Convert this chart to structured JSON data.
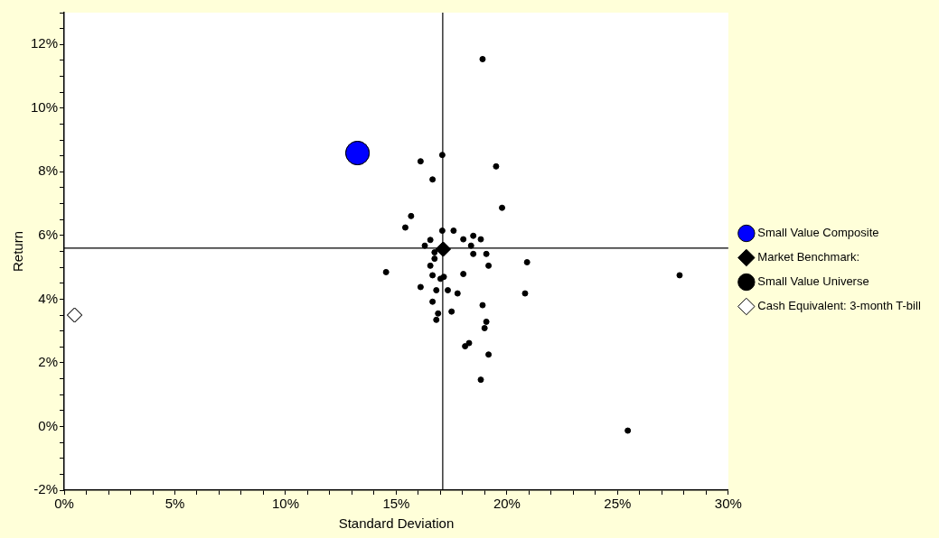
{
  "chart_data": {
    "type": "scatter",
    "xlabel": "Standard Deviation",
    "ylabel": "Return",
    "xlim": [
      0,
      30
    ],
    "ylim": [
      -2,
      13
    ],
    "xticks": [
      {
        "value": 0,
        "label": "0%"
      },
      {
        "value": 1,
        "label": null
      },
      {
        "value": 2,
        "label": null
      },
      {
        "value": 3,
        "label": null
      },
      {
        "value": 4,
        "label": null
      },
      {
        "value": 5,
        "label": "5%"
      },
      {
        "value": 6,
        "label": null
      },
      {
        "value": 7,
        "label": null
      },
      {
        "value": 8,
        "label": null
      },
      {
        "value": 9,
        "label": null
      },
      {
        "value": 10,
        "label": "10%"
      },
      {
        "value": 11,
        "label": null
      },
      {
        "value": 12,
        "label": null
      },
      {
        "value": 13,
        "label": null
      },
      {
        "value": 14,
        "label": null
      },
      {
        "value": 15,
        "label": "15%"
      },
      {
        "value": 16,
        "label": null
      },
      {
        "value": 17,
        "label": null
      },
      {
        "value": 18,
        "label": null
      },
      {
        "value": 19,
        "label": null
      },
      {
        "value": 20,
        "label": "20%"
      },
      {
        "value": 21,
        "label": null
      },
      {
        "value": 22,
        "label": null
      },
      {
        "value": 23,
        "label": null
      },
      {
        "value": 24,
        "label": null
      },
      {
        "value": 25,
        "label": "25%"
      },
      {
        "value": 26,
        "label": null
      },
      {
        "value": 27,
        "label": null
      },
      {
        "value": 28,
        "label": null
      },
      {
        "value": 29,
        "label": null
      },
      {
        "value": 30,
        "label": "30%"
      }
    ],
    "yticks": [
      {
        "value": -2,
        "label": "-2%"
      },
      {
        "value": -1.5,
        "label": null
      },
      {
        "value": -1,
        "label": null
      },
      {
        "value": -0.5,
        "label": null
      },
      {
        "value": 0,
        "label": "0%"
      },
      {
        "value": 0.5,
        "label": null
      },
      {
        "value": 1,
        "label": null
      },
      {
        "value": 1.5,
        "label": null
      },
      {
        "value": 2,
        "label": "2%"
      },
      {
        "value": 2.5,
        "label": null
      },
      {
        "value": 3,
        "label": null
      },
      {
        "value": 3.5,
        "label": null
      },
      {
        "value": 4,
        "label": "4%"
      },
      {
        "value": 4.5,
        "label": null
      },
      {
        "value": 5,
        "label": null
      },
      {
        "value": 5.5,
        "label": null
      },
      {
        "value": 6,
        "label": "6%"
      },
      {
        "value": 6.5,
        "label": null
      },
      {
        "value": 7,
        "label": null
      },
      {
        "value": 7.5,
        "label": null
      },
      {
        "value": 8,
        "label": "8%"
      },
      {
        "value": 8.5,
        "label": null
      },
      {
        "value": 9,
        "label": null
      },
      {
        "value": 9.5,
        "label": null
      },
      {
        "value": 10,
        "label": "10%"
      },
      {
        "value": 10.5,
        "label": null
      },
      {
        "value": 11,
        "label": null
      },
      {
        "value": 11.5,
        "label": null
      },
      {
        "value": 12,
        "label": "12%"
      },
      {
        "value": 12.5,
        "label": null
      },
      {
        "value": 13,
        "label": null
      }
    ],
    "grid": false,
    "legend": "right",
    "ref_lines": [
      {
        "axis": "x",
        "value": 17.1,
        "color": "#000000"
      },
      {
        "axis": "y",
        "value": 5.6,
        "color": "#000000"
      }
    ],
    "series": [
      {
        "name": "Small Value Composite",
        "color": "#0000ff",
        "marker": "circle",
        "x": [
          13.25
        ],
        "values": [
          8.59
        ]
      },
      {
        "name": "Market Benchmark:",
        "color": "#000000",
        "marker": "diamond",
        "x": [
          17.12
        ],
        "values": [
          5.57
        ]
      },
      {
        "name": "Small Value Universe",
        "color": "#000000",
        "marker": "circle",
        "x": [
          18.9,
          17.08,
          16.1,
          19.51,
          16.64,
          19.78,
          15.67,
          15.41,
          17.08,
          17.59,
          18.48,
          16.54,
          18.03,
          18.82,
          16.29,
          18.38,
          16.73,
          18.48,
          19.07,
          16.73,
          20.91,
          16.54,
          19.17,
          14.54,
          16.64,
          17.15,
          17.0,
          18.03,
          16.1,
          16.81,
          17.33,
          17.77,
          20.82,
          16.64,
          18.9,
          16.89,
          17.5,
          16.81,
          19.07,
          18.99,
          18.29,
          18.11,
          19.17,
          18.82,
          27.8,
          25.46
        ],
        "values": [
          11.54,
          8.53,
          8.33,
          8.17,
          7.76,
          6.87,
          6.61,
          6.25,
          6.15,
          6.15,
          5.99,
          5.86,
          5.88,
          5.88,
          5.68,
          5.68,
          5.47,
          5.42,
          5.42,
          5.27,
          5.16,
          5.05,
          5.05,
          4.85,
          4.75,
          4.7,
          4.64,
          4.79,
          4.38,
          4.28,
          4.28,
          4.18,
          4.18,
          3.92,
          3.81,
          3.55,
          3.61,
          3.35,
          3.29,
          3.09,
          2.62,
          2.52,
          2.26,
          1.47,
          4.75,
          -0.13
        ]
      },
      {
        "name": "Cash Equivalent: 3-month T-bill",
        "color": "#ffffff",
        "marker": "diamond",
        "x": [
          0.47
        ],
        "values": [
          3.5
        ]
      }
    ]
  }
}
